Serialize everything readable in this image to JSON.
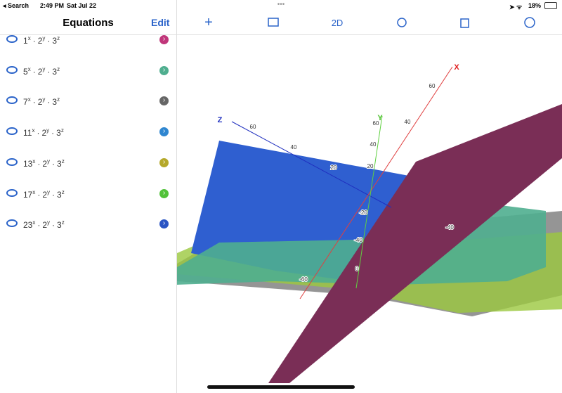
{
  "status_bar": {
    "back": "Search",
    "time": "2:49 PM",
    "date": "Sat Jul 22",
    "battery": "18%"
  },
  "sidebar": {
    "title": "Equations",
    "edit": "Edit",
    "separator": "·",
    "equations": [
      {
        "terms": [
          [
            "1",
            "x"
          ],
          [
            "2",
            "y"
          ],
          [
            "3",
            "z"
          ]
        ],
        "color": "#c0367a"
      },
      {
        "terms": [
          [
            "5",
            "x"
          ],
          [
            "2",
            "y"
          ],
          [
            "3",
            "z"
          ]
        ],
        "color": "#4fae8f"
      },
      {
        "terms": [
          [
            "7",
            "x"
          ],
          [
            "2",
            "y"
          ],
          [
            "3",
            "z"
          ]
        ],
        "color": "#666666"
      },
      {
        "terms": [
          [
            "11",
            "x"
          ],
          [
            "2",
            "y"
          ],
          [
            "3",
            "z"
          ]
        ],
        "color": "#2f86d0"
      },
      {
        "terms": [
          [
            "13",
            "x"
          ],
          [
            "2",
            "y"
          ],
          [
            "3",
            "z"
          ]
        ],
        "color": "#b5a82a"
      },
      {
        "terms": [
          [
            "17",
            "x"
          ],
          [
            "2",
            "y"
          ],
          [
            "3",
            "z"
          ]
        ],
        "color": "#52c23a"
      },
      {
        "terms": [
          [
            "23",
            "x"
          ],
          [
            "2",
            "y"
          ],
          [
            "3",
            "z"
          ]
        ],
        "color": "#2b55c4"
      }
    ]
  },
  "toolbar": {
    "mode": "2D"
  },
  "plot": {
    "axes": {
      "x": "X",
      "y": "Y",
      "z": "Z"
    },
    "tick_labels": [
      "60",
      "40",
      "-40",
      "60",
      "40",
      "20",
      "-20",
      "-40",
      "0",
      "-60",
      "60",
      "40",
      "20"
    ]
  }
}
